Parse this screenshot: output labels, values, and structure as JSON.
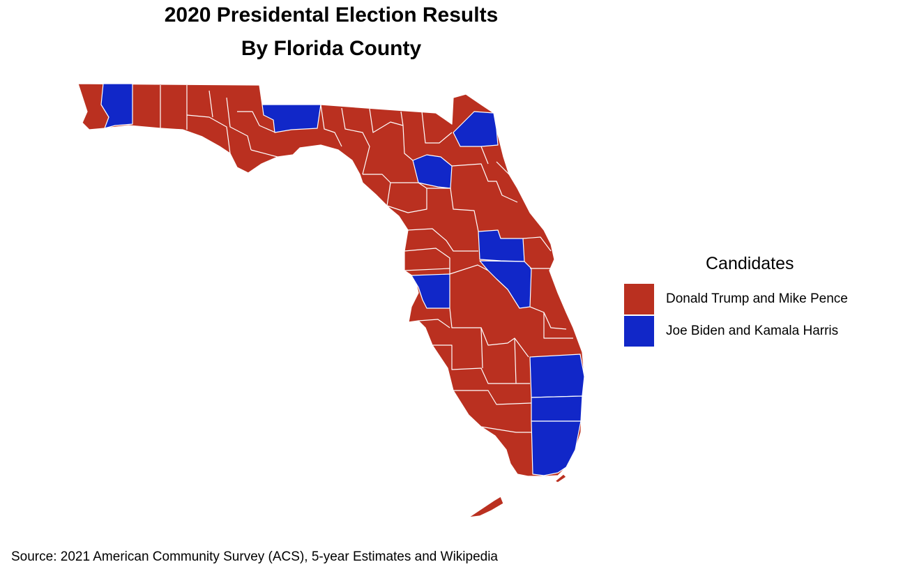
{
  "title": {
    "line1": "2020 Presidental Election Results",
    "line2": "By Florida County"
  },
  "legend": {
    "title": "Candidates",
    "items": [
      {
        "label": "Donald Trump and Mike Pence",
        "color": "#BA3020"
      },
      {
        "label": "Joe Biden and Kamala Harris",
        "color": "#1127C8"
      }
    ]
  },
  "colors": {
    "trump": "#BA3020",
    "biden": "#1127C8",
    "border": "#FFFFFF"
  },
  "map": {
    "biden_regions": [
      "panhandle-west-county",
      "big-bend-capital-county",
      "northeast-coastal-county",
      "north-central-county",
      "central-inland-county",
      "central-east-county",
      "west-coast-bay-county",
      "southeast-upper-county",
      "southeast-middle-county",
      "southeast-lower-county"
    ]
  },
  "source": "Source: 2021 American Community Survey (ACS), 5-year Estimates and Wikipedia"
}
